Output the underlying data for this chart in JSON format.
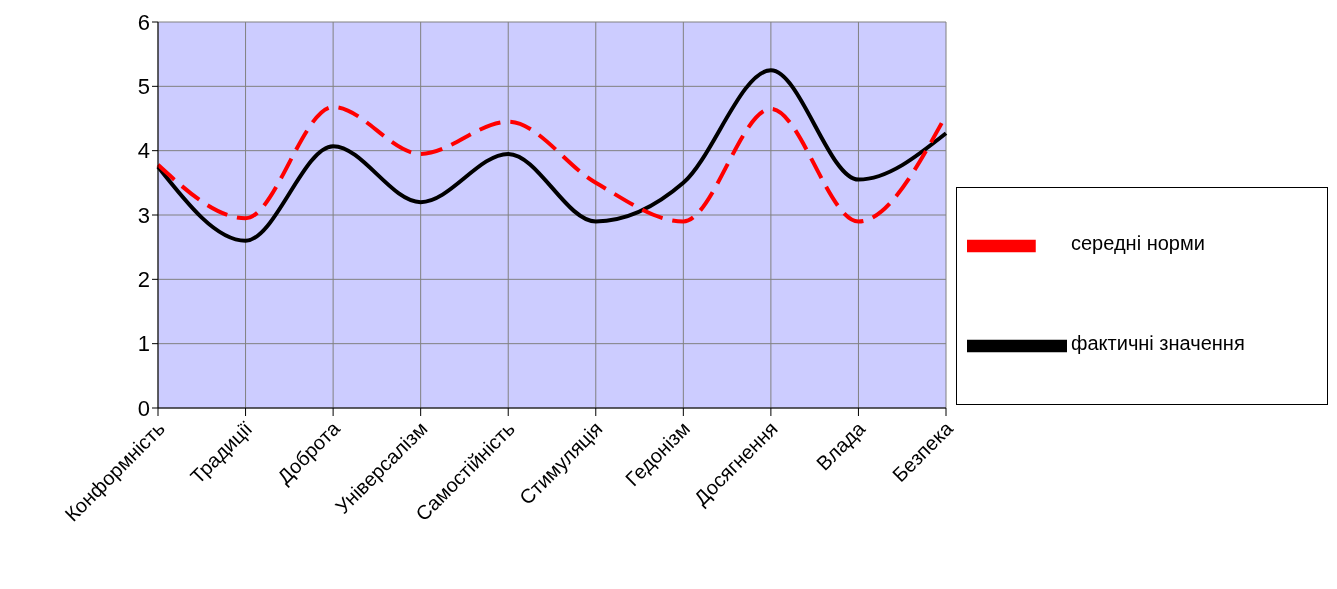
{
  "chart_data": {
    "type": "line",
    "categories": [
      "Конформність",
      "Традиції",
      "Доброта",
      "Універсалізм",
      "Самостійність",
      "Стимуляція",
      "Гедонізм",
      "Досягнення",
      "Влада",
      "Безпека"
    ],
    "series": [
      {
        "name": "фактичні значення",
        "color": "#000000",
        "line_style": "solid",
        "values": [
          3.75,
          2.6,
          4.07,
          3.2,
          3.95,
          2.9,
          3.5,
          5.25,
          3.55,
          4.27
        ]
      },
      {
        "name": "середні норми",
        "color": "#ff0000",
        "line_style": "dashed",
        "values": [
          3.78,
          2.95,
          4.68,
          3.95,
          4.45,
          3.5,
          2.9,
          4.65,
          2.9,
          4.55
        ]
      }
    ],
    "ylim": [
      0,
      6
    ],
    "yticks": [
      0,
      1,
      2,
      3,
      4,
      5,
      6
    ],
    "grid": true,
    "legend": "right",
    "marker": "none"
  }
}
